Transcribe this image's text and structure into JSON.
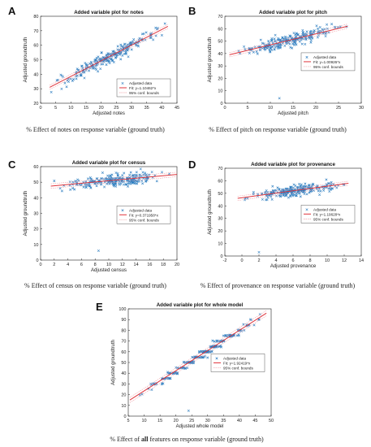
{
  "captions": [
    "% Effect of notes on response variable (ground truth)",
    "% Effect of pitch on response variable (ground truth)",
    "% Effect of census on response variable (ground truth)",
    "% Effect of provenance on response variable (ground truth)",
    "% Effect of all features on response variable (ground truth)"
  ],
  "colors": {
    "points": "#2f7fc1",
    "fit": "#e0343c",
    "bounds": "#f0a0a8"
  },
  "chart_data": [
    {
      "type": "scatter",
      "letter": "A",
      "title": "Added variable plot for notes",
      "xlabel": "Adjusted notes",
      "ylabel": "Adjusted groundtruth",
      "xlim": [
        0,
        45
      ],
      "ylim": [
        20,
        80
      ],
      "xticks": [
        "0",
        "5",
        "10",
        "15",
        "20",
        "25",
        "30",
        "35",
        "40",
        "45"
      ],
      "yticks": [
        "20",
        "30",
        "40",
        "50",
        "60",
        "70",
        "80"
      ],
      "legend": [
        "Adjusted data",
        "Fit: y=1.10462*x",
        "95% conf. bounds"
      ],
      "legend_position": "bottom-right",
      "fit": [
        [
          3,
          31
        ],
        [
          42,
          73
        ]
      ],
      "cloud": {
        "x0": 3,
        "x1": 42,
        "slope": 1.077,
        "intercept": 27.8,
        "noise": 3.2,
        "n": 230
      },
      "outliers": []
    },
    {
      "type": "scatter",
      "letter": "B",
      "title": "Added variable plot for pitch",
      "xlabel": "Adjusted pitch",
      "ylabel": "Adjusted groundtruth",
      "xlim": [
        0,
        30
      ],
      "ylim": [
        0,
        70
      ],
      "xticks": [
        "0",
        "5",
        "10",
        "15",
        "20",
        "25",
        "30"
      ],
      "yticks": [
        "0",
        "10",
        "20",
        "30",
        "40",
        "50",
        "60",
        "70"
      ],
      "legend": [
        "Adjusted data",
        "Fit: y=1.00926*x",
        "95% conf. bounds"
      ],
      "legend_position": "center-right",
      "fit": [
        [
          1,
          39
        ],
        [
          27,
          62
        ]
      ],
      "cloud": {
        "x0": 2,
        "x1": 27,
        "slope": 0.885,
        "intercept": 38.1,
        "noise": 3.6,
        "n": 230
      },
      "outliers": [
        [
          12,
          4
        ]
      ]
    },
    {
      "type": "scatter",
      "letter": "C",
      "title": "Added variable plot for census",
      "xlabel": "Adjusted census",
      "ylabel": "Adjusted groundtruth",
      "xlim": [
        0,
        20
      ],
      "ylim": [
        0,
        60
      ],
      "xticks": [
        "0",
        "2",
        "4",
        "6",
        "8",
        "10",
        "12",
        "14",
        "16",
        "18",
        "20"
      ],
      "yticks": [
        "0",
        "10",
        "20",
        "30",
        "40",
        "50",
        "60"
      ],
      "legend": [
        "Adjusted data",
        "Fit: y=0.371958*x",
        "95% conf. bounds"
      ],
      "legend_position": "center-right",
      "fit": [
        [
          1.5,
          47.5
        ],
        [
          20,
          55
        ]
      ],
      "cloud": {
        "x0": 2,
        "x1": 19,
        "slope": 0.38,
        "intercept": 47,
        "noise": 3.0,
        "n": 230
      },
      "outliers": [
        [
          8.5,
          6
        ]
      ]
    },
    {
      "type": "scatter",
      "letter": "D",
      "title": "Added variable plot for provenance",
      "xlabel": "Adjusted provenance",
      "ylabel": "Adjusted groundtruth",
      "xlim": [
        -2,
        14
      ],
      "ylim": [
        0,
        70
      ],
      "xticks": [
        "-2",
        "0",
        "2",
        "4",
        "6",
        "8",
        "10",
        "12",
        "14"
      ],
      "yticks": [
        "0",
        "10",
        "20",
        "30",
        "40",
        "50",
        "60",
        "70"
      ],
      "legend": [
        "Adjusted data",
        "Fit: y=1.19628*x",
        "95% conf. bounds"
      ],
      "legend_position": "center-right",
      "fit": [
        [
          -0.5,
          46
        ],
        [
          12.5,
          58
        ]
      ],
      "cloud": {
        "x0": 0,
        "x1": 12,
        "slope": 0.92,
        "intercept": 46.5,
        "noise": 3.2,
        "n": 230
      },
      "outliers": [
        [
          2,
          3
        ]
      ]
    },
    {
      "type": "scatter",
      "letter": "E",
      "title": "Added variable plot for whole model",
      "xlabel": "Adjusted whole model",
      "ylabel": "Adjusted groundtruth",
      "xlim": [
        5,
        50
      ],
      "ylim": [
        0,
        100
      ],
      "xticks": [
        "5",
        "10",
        "15",
        "20",
        "25",
        "30",
        "35",
        "40",
        "45",
        "50"
      ],
      "yticks": [
        "0",
        "10",
        "20",
        "30",
        "40",
        "50",
        "60",
        "70",
        "80",
        "90",
        "100"
      ],
      "legend": [
        "Adjusted data",
        "Fit: y=1.92419*x",
        "95% conf. bounds"
      ],
      "legend_position": "center-right",
      "fit": [
        [
          5.5,
          15
        ],
        [
          48.5,
          96
        ]
      ],
      "cloud": {
        "x0": 6,
        "x1": 48,
        "slope": 1.92,
        "intercept": 3.2,
        "noise": 2.2,
        "n": 230,
        "stepped": true
      },
      "outliers": [
        [
          24,
          5
        ]
      ]
    }
  ]
}
